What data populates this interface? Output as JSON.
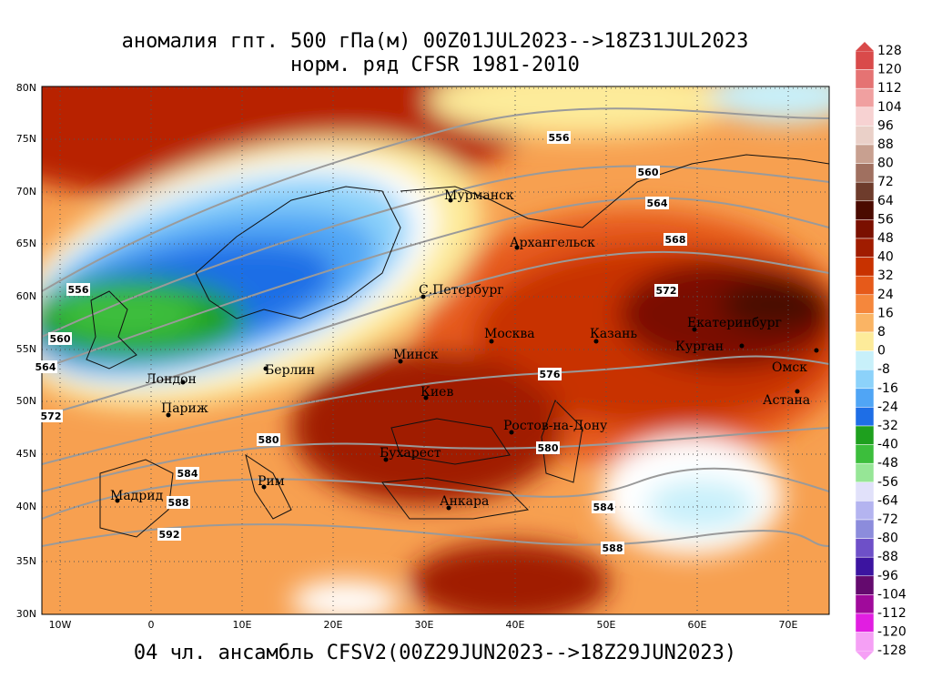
{
  "title": [
    "аномалия гпт. 500 гПа(м) 00Z01JUL2023-->18Z31JUL2023",
    "норм. ряд CFSR 1981-2010"
  ],
  "footer": "04 чл. ансамбль CFSV2(00Z29JUN2023-->18Z29JUN2023)",
  "lat_labels": [
    "80N",
    "75N",
    "70N",
    "65N",
    "60N",
    "55N",
    "50N",
    "45N",
    "40N",
    "35N",
    "30N"
  ],
  "lon_labels": [
    "10W",
    "0",
    "10E",
    "20E",
    "30E",
    "40E",
    "50E",
    "60E",
    "70E"
  ],
  "cities": [
    "Мурманск",
    "Архангельск",
    "С.Петербург",
    "Москва",
    "Казань",
    "Екатеринбург",
    "Курган",
    "Омск",
    "Астана",
    "Минск",
    "Берлин",
    "Лондон",
    "Париж",
    "Киев",
    "Ростов-на-Дону",
    "Бухарест",
    "Рим",
    "Мадрид",
    "Анкара"
  ],
  "contour_labels": [
    "556",
    "560",
    "564",
    "568",
    "572",
    "576",
    "580",
    "584",
    "588",
    "592",
    "584",
    "588",
    "580",
    "556",
    "560",
    "564",
    "572"
  ],
  "colorbar": {
    "labels": [
      "128",
      "120",
      "112",
      "104",
      "96",
      "88",
      "80",
      "72",
      "64",
      "56",
      "48",
      "40",
      "32",
      "24",
      "16",
      "8",
      "0",
      "-8",
      "-16",
      "-24",
      "-32",
      "-40",
      "-48",
      "-56",
      "-64",
      "-72",
      "-80",
      "-88",
      "-96",
      "-104",
      "-112",
      "-120",
      "-128"
    ],
    "colors": [
      "#d94a4a",
      "#e57373",
      "#f0a0a0",
      "#f7d2d2",
      "#ead0c8",
      "#c8a090",
      "#a07060",
      "#6e3c2c",
      "#4a0a00",
      "#7a1000",
      "#a01c00",
      "#c83200",
      "#e65a1a",
      "#f5873c",
      "#fab464",
      "#fdeb9a",
      "#c8f0fa",
      "#8cd2fa",
      "#50a5f5",
      "#1e6ee6",
      "#1ea01e",
      "#3cbe3c",
      "#96e696",
      "#e1e1fa",
      "#b4b4f0",
      "#8c8cdc",
      "#6e50c8",
      "#3c14a0",
      "#640a6e",
      "#a00a9b",
      "#e11ee1",
      "#f5a0f5"
    ]
  }
}
